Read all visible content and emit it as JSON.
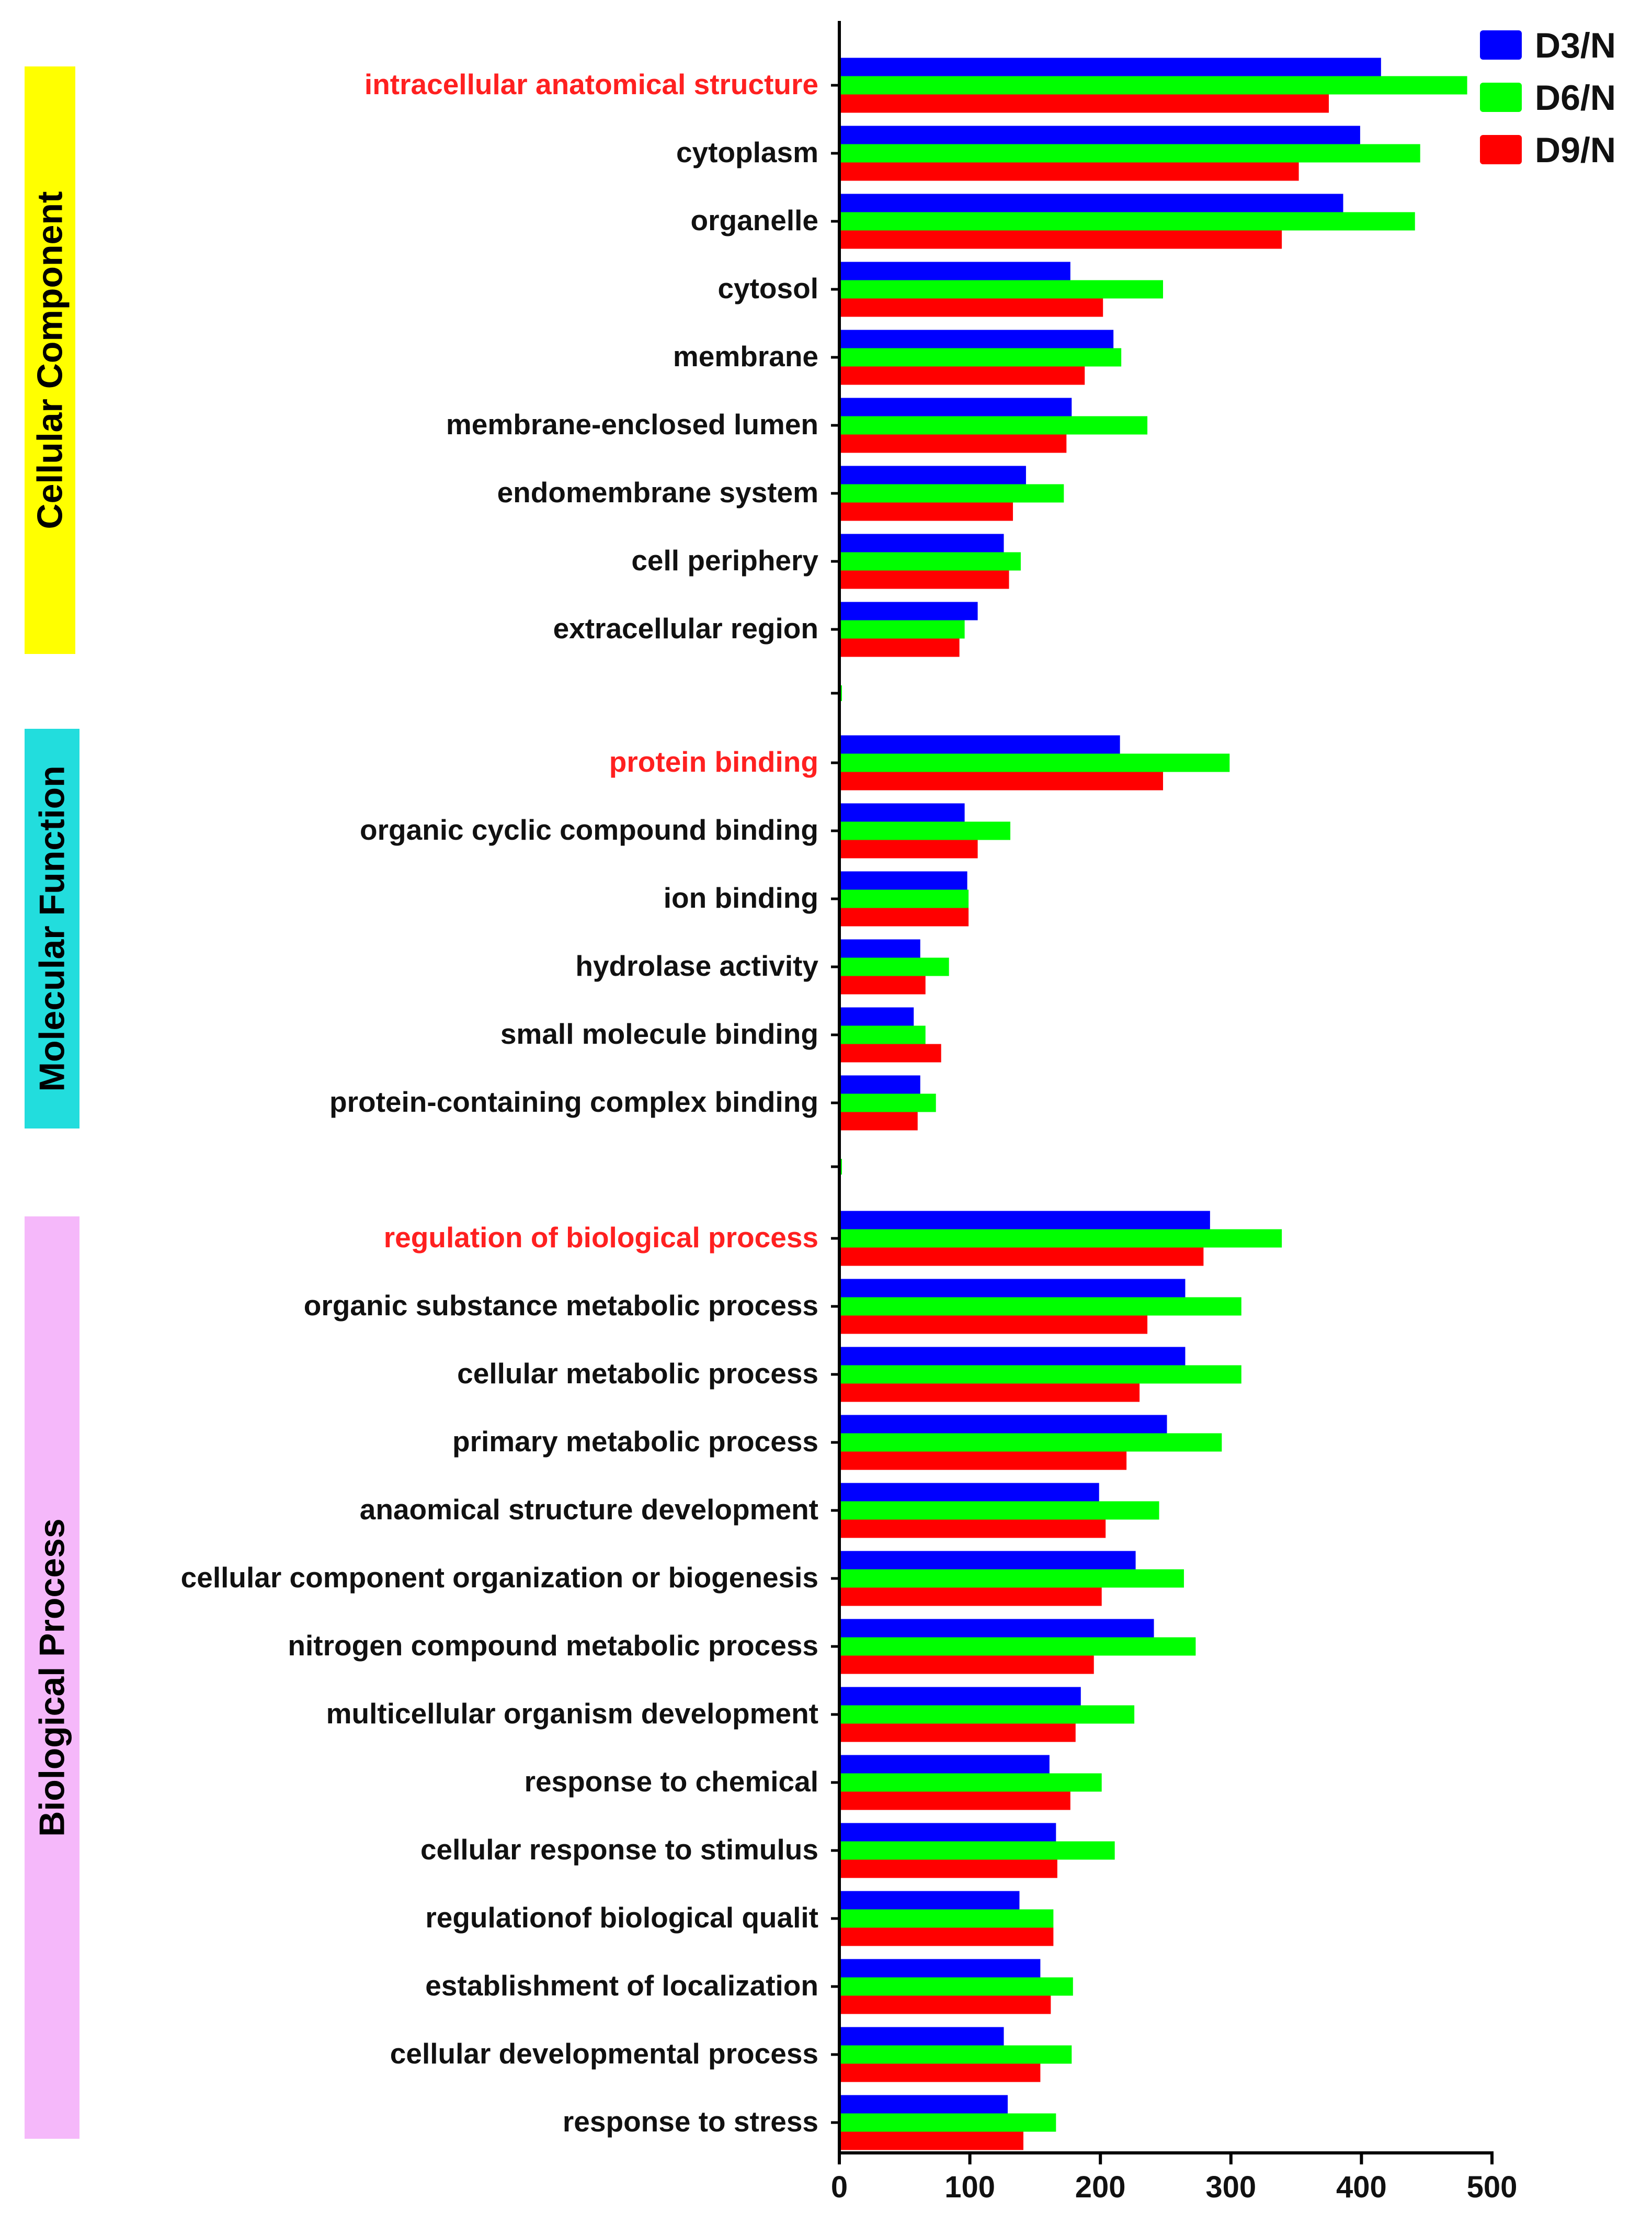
{
  "chart_data": {
    "type": "bar",
    "orientation": "horizontal",
    "xlim": [
      0,
      500
    ],
    "xticks": [
      0,
      100,
      200,
      300,
      400,
      500
    ],
    "legend_position": "top-right",
    "series": [
      {
        "name": "D3/N",
        "color": "#0000ff"
      },
      {
        "name": "D6/N",
        "color": "#00ff00"
      },
      {
        "name": "D9/N",
        "color": "#ff0000"
      }
    ],
    "groups": [
      {
        "name": "Cellular Component",
        "color": "#ffff00",
        "categories": [
          {
            "label": "intracellular anatomical structure",
            "highlight": true,
            "values": [
              415,
              481,
              375
            ]
          },
          {
            "label": "cytoplasm",
            "highlight": false,
            "values": [
              399,
              445,
              352
            ]
          },
          {
            "label": "organelle",
            "highlight": false,
            "values": [
              386,
              441,
              339
            ]
          },
          {
            "label": "cytosol",
            "highlight": false,
            "values": [
              177,
              248,
              202
            ]
          },
          {
            "label": "membrane",
            "highlight": false,
            "values": [
              210,
              216,
              188
            ]
          },
          {
            "label": "membrane-enclosed lumen",
            "highlight": false,
            "values": [
              178,
              236,
              174
            ]
          },
          {
            "label": "endomembrane system",
            "highlight": false,
            "values": [
              143,
              172,
              133
            ]
          },
          {
            "label": "cell periphery",
            "highlight": false,
            "values": [
              126,
              139,
              130
            ]
          },
          {
            "label": "extracellular region",
            "highlight": false,
            "values": [
              106,
              96,
              92
            ]
          }
        ]
      },
      {
        "name": "Molecular Function",
        "color": "#22dddd",
        "categories": [
          {
            "label": "protein binding",
            "highlight": true,
            "values": [
              215,
              299,
              248
            ]
          },
          {
            "label": "organic cyclic compound binding",
            "highlight": false,
            "values": [
              96,
              131,
              106
            ]
          },
          {
            "label": "ion binding",
            "highlight": false,
            "values": [
              98,
              99,
              99
            ]
          },
          {
            "label": "hydrolase activity",
            "highlight": false,
            "values": [
              62,
              84,
              66
            ]
          },
          {
            "label": "small molecule binding",
            "highlight": false,
            "values": [
              57,
              66,
              78
            ]
          },
          {
            "label": "protein-containing complex binding",
            "highlight": false,
            "values": [
              62,
              74,
              60
            ]
          }
        ]
      },
      {
        "name": "Biological Process",
        "color": "#f5b8fa",
        "categories": [
          {
            "label": "regulation of biological process",
            "highlight": true,
            "values": [
              284,
              339,
              279
            ]
          },
          {
            "label": "organic substance metabolic process",
            "highlight": false,
            "values": [
              265,
              308,
              236
            ]
          },
          {
            "label": "cellular metabolic process",
            "highlight": false,
            "values": [
              265,
              308,
              230
            ]
          },
          {
            "label": "primary metabolic process",
            "highlight": false,
            "values": [
              251,
              293,
              220
            ]
          },
          {
            "label": "anaomical structure development",
            "highlight": false,
            "values": [
              199,
              245,
              204
            ]
          },
          {
            "label": "cellular component organization or biogenesis",
            "highlight": false,
            "values": [
              227,
              264,
              201
            ]
          },
          {
            "label": "nitrogen compound metabolic process",
            "highlight": false,
            "values": [
              241,
              273,
              195
            ]
          },
          {
            "label": "multicellular organism development",
            "highlight": false,
            "values": [
              185,
              226,
              181
            ]
          },
          {
            "label": "response to chemical",
            "highlight": false,
            "values": [
              161,
              201,
              177
            ]
          },
          {
            "label": "cellular response to stimulus",
            "highlight": false,
            "values": [
              166,
              211,
              167
            ]
          },
          {
            "label": "regulationof biological qualit",
            "highlight": false,
            "values": [
              138,
              164,
              164
            ]
          },
          {
            "label": "establishment of localization",
            "highlight": false,
            "values": [
              154,
              179,
              162
            ]
          },
          {
            "label": "cellular developmental process",
            "highlight": false,
            "values": [
              126,
              178,
              154
            ]
          },
          {
            "label": "response to stress",
            "highlight": false,
            "values": [
              129,
              166,
              141
            ]
          }
        ]
      }
    ]
  }
}
